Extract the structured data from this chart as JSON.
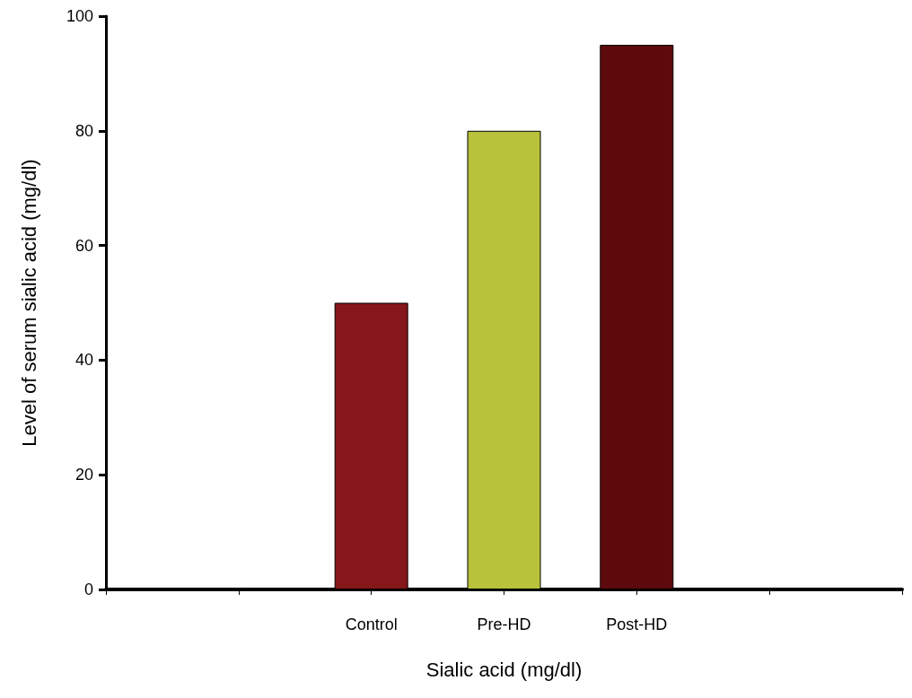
{
  "chart_data": {
    "type": "bar",
    "xlabel": "Sialic acid (mg/dl)",
    "ylabel": "Level of serum sialic acid (mg/dl)",
    "categories": [
      "Control",
      "Pre-HD",
      "Post-HD"
    ],
    "values": [
      50,
      80,
      95
    ],
    "colors": [
      "#85161a",
      "#b8c23a",
      "#5e0a0d"
    ],
    "ylim": [
      0,
      100
    ],
    "yticks": [
      0,
      20,
      40,
      60,
      80,
      100
    ],
    "grid": false
  }
}
